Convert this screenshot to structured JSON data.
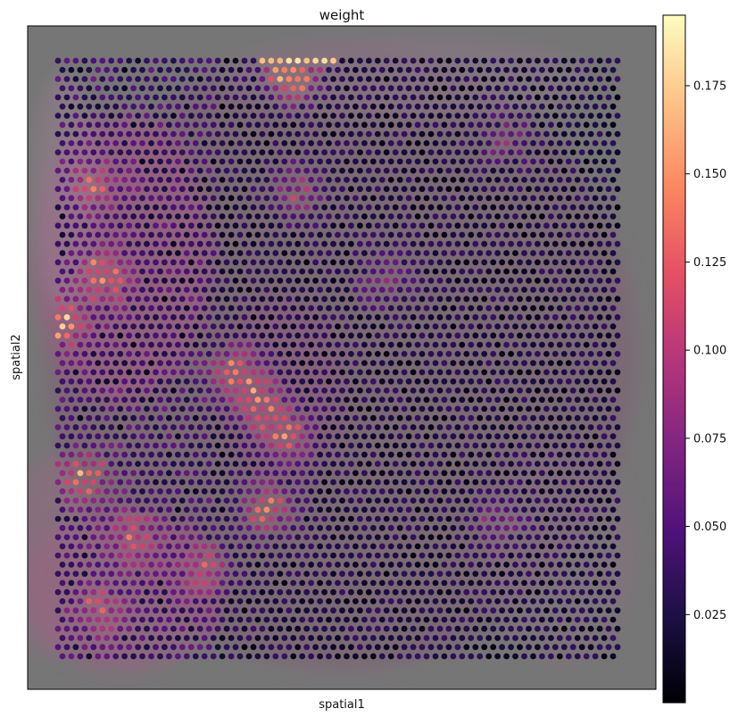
{
  "chart_data": {
    "type": "scatter",
    "title": "weight",
    "xlabel": "spatial1",
    "ylabel": "spatial2",
    "background": "tissue histology image (H&E) behind spot grid",
    "grid": false,
    "colormap": "magma",
    "colorbar": {
      "position": "right",
      "range": [
        0.0,
        0.195
      ],
      "ticks": [
        0.025,
        0.05,
        0.075,
        0.1,
        0.125,
        0.15,
        0.175
      ],
      "tick_labels": [
        "0.025",
        "0.050",
        "0.075",
        "0.100",
        "0.125",
        "0.150",
        "0.175"
      ]
    },
    "spot_grid": {
      "rows": 66,
      "cols": 64,
      "base_weight": 0.02
    },
    "hotspots": [
      {
        "x": 0.42,
        "y": 0.07,
        "value": 0.19,
        "label": "top edge row"
      },
      {
        "x": 0.05,
        "y": 0.45,
        "value": 0.14
      },
      {
        "x": 0.12,
        "y": 0.38,
        "value": 0.13
      },
      {
        "x": 0.33,
        "y": 0.52,
        "value": 0.13
      },
      {
        "x": 0.37,
        "y": 0.57,
        "value": 0.12
      },
      {
        "x": 0.41,
        "y": 0.62,
        "value": 0.12
      },
      {
        "x": 0.09,
        "y": 0.68,
        "value": 0.12
      },
      {
        "x": 0.38,
        "y": 0.73,
        "value": 0.13
      },
      {
        "x": 0.17,
        "y": 0.77,
        "value": 0.1
      },
      {
        "x": 0.1,
        "y": 0.24,
        "value": 0.09
      },
      {
        "x": 0.43,
        "y": 0.25,
        "value": 0.08
      },
      {
        "x": 0.28,
        "y": 0.82,
        "value": 0.09
      },
      {
        "x": 0.57,
        "y": 0.38,
        "value": 0.06
      },
      {
        "x": 0.76,
        "y": 0.17,
        "value": 0.05
      },
      {
        "x": 0.75,
        "y": 0.75,
        "value": 0.06
      },
      {
        "x": 0.12,
        "y": 0.88,
        "value": 0.09
      }
    ],
    "colors": {
      "magma_stops": [
        "#000004",
        "#1c1044",
        "#4f127b",
        "#812581",
        "#b5367a",
        "#e55064",
        "#fb8761",
        "#fec287",
        "#fcfdbf"
      ],
      "tissue": "#8a6f7a",
      "backdrop": "#767676"
    }
  }
}
